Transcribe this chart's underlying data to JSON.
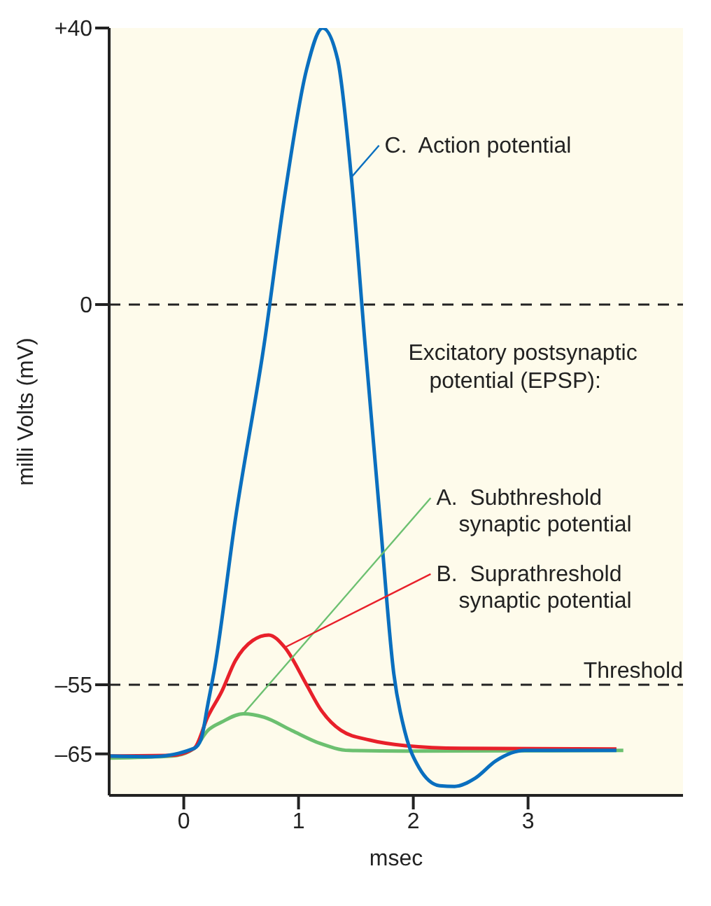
{
  "chart_data": {
    "type": "line",
    "xlabel": "msec",
    "ylabel": "milli Volts (mV)",
    "xlim": [
      -0.65,
      4.35
    ],
    "ylim": [
      -71,
      40
    ],
    "xticks": [
      0,
      1,
      2,
      3
    ],
    "yticks": [
      {
        "value": 40,
        "label": "+40"
      },
      0,
      {
        "value": -55,
        "label": "–55"
      },
      {
        "value": -65,
        "label": "–65"
      }
    ],
    "series": [
      {
        "name": "A.  Subthreshold synaptic potential",
        "color": "#6cc070",
        "x": [
          -0.65,
          -0.1,
          0.09,
          0.21,
          0.33,
          0.52,
          0.7,
          0.94,
          1.19,
          1.44,
          1.93,
          3.83
        ],
        "values": [
          -65.6,
          -65.3,
          -64.2,
          -61.6,
          -60.4,
          -59.2,
          -59.7,
          -61.6,
          -63.5,
          -64.5,
          -64.6,
          -64.5
        ]
      },
      {
        "name": "B.  Suprathreshold synaptic potential",
        "color": "#e8202a",
        "x": [
          -0.65,
          -0.1,
          0.09,
          0.21,
          0.33,
          0.45,
          0.6,
          0.74,
          0.88,
          1.07,
          1.19,
          1.37,
          1.62,
          1.93,
          2.42,
          3.77
        ],
        "values": [
          -65.3,
          -65.2,
          -64.2,
          -59.6,
          -56,
          -51.5,
          -48.6,
          -47.8,
          -49.6,
          -55,
          -58.5,
          -61.6,
          -63,
          -63.8,
          -64.2,
          -64.3
        ]
      },
      {
        "name": "C.  Action potential",
        "color": "#0a6fbf",
        "x": [
          -0.65,
          -0.28,
          0.09,
          0.15,
          0.21,
          0.27,
          0.45,
          0.7,
          0.88,
          1.07,
          1.21,
          1.34,
          1.46,
          1.58,
          1.71,
          1.83,
          1.93,
          2.05,
          2.23,
          2.36,
          2.54,
          2.72,
          2.97,
          3.77
        ],
        "values": [
          -65.3,
          -65.4,
          -64.2,
          -62.9,
          -57.8,
          -52.5,
          -31,
          -5.8,
          15.8,
          34,
          40,
          35.5,
          18.4,
          -5.8,
          -31,
          -53.4,
          -62,
          -67,
          -69.6,
          -69.7,
          -68.5,
          -66,
          -64.5,
          -64.5
        ]
      }
    ],
    "ref_lines": [
      {
        "axis": "y",
        "value": 0,
        "label": null,
        "line_style": "dashed"
      },
      {
        "axis": "y",
        "value": -55,
        "label": "Threshold",
        "line_style": "dashed"
      }
    ],
    "annotations": [
      "Excitatory postsynaptic potential (EPSP):"
    ]
  }
}
